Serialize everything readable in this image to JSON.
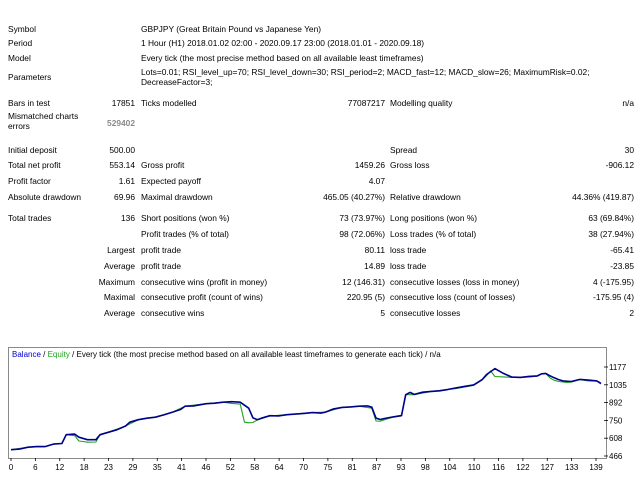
{
  "report": {
    "symbol_label": "Symbol",
    "symbol_value": "GBPJPY (Great Britain Pound vs Japanese Yen)",
    "period_label": "Period",
    "period_value": "1 Hour (H1) 2018.01.02 02:00 - 2020.09.17 23:00 (2018.01.01 - 2020.09.18)",
    "model_label": "Model",
    "model_value": "Every tick (the most precise method based on all available least timeframes)",
    "params_label": "Parameters",
    "params_value": "Lots=0.01; RSI_level_up=70; RSI_level_down=30; RSI_period=2; MACD_fast=12; MACD_slow=26; MaximumRisk=0.02; DecreaseFactor=3;",
    "bars_label": "Bars in test",
    "bars_value": "17851",
    "ticks_label": "Ticks modelled",
    "ticks_value": "77087217",
    "quality_label": "Modelling quality",
    "quality_value": "n/a",
    "mismatch_label": "Mismatched charts errors",
    "mismatch_value": "529402",
    "initial_deposit_label": "Initial deposit",
    "initial_deposit_value": "500.00",
    "spread_label": "Spread",
    "spread_value": "30",
    "net_profit_label": "Total net profit",
    "net_profit_value": "553.14",
    "gross_profit_label": "Gross profit",
    "gross_profit_value": "1459.26",
    "gross_loss_label": "Gross loss",
    "gross_loss_value": "-906.12",
    "profit_factor_label": "Profit factor",
    "profit_factor_value": "1.61",
    "expected_payoff_label": "Expected payoff",
    "expected_payoff_value": "4.07",
    "abs_dd_label": "Absolute drawdown",
    "abs_dd_value": "69.96",
    "max_dd_label": "Maximal drawdown",
    "max_dd_value": "465.05 (40.27%)",
    "rel_dd_label": "Relative drawdown",
    "rel_dd_value": "44.36% (419.87)",
    "total_trades_label": "Total trades",
    "total_trades_value": "136",
    "short_label": "Short positions (won %)",
    "short_value": "73 (73.97%)",
    "long_label": "Long positions (won %)",
    "long_value": "63 (69.84%)",
    "profit_trades_label": "Profit trades (% of total)",
    "profit_trades_value": "98 (72.06%)",
    "loss_trades_label": "Loss trades (% of total)",
    "loss_trades_value": "38 (27.94%)",
    "largest_label": "Largest",
    "largest_profit_label": "profit trade",
    "largest_profit_value": "80.11",
    "largest_loss_label": "loss trade",
    "largest_loss_value": "-65.41",
    "average_label": "Average",
    "average_profit_label": "profit trade",
    "average_profit_value": "14.89",
    "average_loss_label": "loss trade",
    "average_loss_value": "-23.85",
    "maximum_label": "Maximum",
    "max_cons_wins_label": "consecutive wins (profit in money)",
    "max_cons_wins_value": "12 (146.31)",
    "max_cons_losses_label": "consecutive losses (loss in money)",
    "max_cons_losses_value": "4 (-175.95)",
    "maximal_label": "Maximal",
    "maximal_cons_profit_label": "consecutive profit (count of wins)",
    "maximal_cons_profit_value": "220.95 (5)",
    "maximal_cons_loss_label": "consecutive loss (count of losses)",
    "maximal_cons_loss_value": "-175.95 (4)",
    "avg_label": "Average",
    "avg_cons_wins_label": "consecutive wins",
    "avg_cons_wins_value": "5",
    "avg_cons_losses_label": "consecutive losses",
    "avg_cons_losses_value": "2"
  },
  "chart_legend": {
    "balance": "Balance",
    "sep1": " / ",
    "equity": "Equity",
    "text": " / Every tick (the most precise method based on all available least timeframes to generate each tick) / n/a"
  },
  "colors": {
    "balance": "#00008b",
    "equity": "#1fa31f",
    "legend_balance": "#0000cd",
    "legend_equity": "#1fa31f"
  },
  "chart_data": {
    "type": "line",
    "title": "",
    "xlabel": "",
    "ylabel": "",
    "x_ticks": [
      "0",
      "6",
      "12",
      "18",
      "23",
      "29",
      "35",
      "41",
      "46",
      "52",
      "58",
      "64",
      "70",
      "75",
      "81",
      "87",
      "93",
      "98",
      "104",
      "110",
      "116",
      "122",
      "127",
      "133",
      "139"
    ],
    "y_ticks": [
      "1177",
      "1035",
      "892",
      "750",
      "608",
      "466"
    ],
    "xlim": [
      0,
      139
    ],
    "ylim": [
      466,
      1177
    ],
    "series": [
      {
        "name": "Balance",
        "points": [
          [
            0,
            500
          ],
          [
            2,
            505
          ],
          [
            4,
            520
          ],
          [
            6,
            525
          ],
          [
            8,
            525
          ],
          [
            10,
            545
          ],
          [
            12,
            550
          ],
          [
            13,
            620
          ],
          [
            15,
            625
          ],
          [
            16,
            600
          ],
          [
            18,
            580
          ],
          [
            20,
            580
          ],
          [
            21,
            620
          ],
          [
            23,
            640
          ],
          [
            25,
            660
          ],
          [
            27,
            690
          ],
          [
            28,
            720
          ],
          [
            30,
            740
          ],
          [
            32,
            752
          ],
          [
            34,
            760
          ],
          [
            36,
            778
          ],
          [
            38,
            800
          ],
          [
            40,
            822
          ],
          [
            41,
            848
          ],
          [
            43,
            850
          ],
          [
            45,
            862
          ],
          [
            46,
            868
          ],
          [
            48,
            872
          ],
          [
            50,
            880
          ],
          [
            52,
            884
          ],
          [
            54,
            880
          ],
          [
            56,
            832
          ],
          [
            57,
            755
          ],
          [
            58,
            740
          ],
          [
            59,
            752
          ],
          [
            61,
            772
          ],
          [
            63,
            770
          ],
          [
            65,
            780
          ],
          [
            67,
            785
          ],
          [
            69,
            790
          ],
          [
            71,
            797
          ],
          [
            73,
            793
          ],
          [
            74,
            800
          ],
          [
            76,
            826
          ],
          [
            78,
            838
          ],
          [
            80,
            842
          ],
          [
            82,
            848
          ],
          [
            84,
            850
          ],
          [
            85,
            840
          ],
          [
            86,
            752
          ],
          [
            87,
            742
          ],
          [
            88,
            750
          ],
          [
            90,
            762
          ],
          [
            92,
            773
          ],
          [
            93,
            940
          ],
          [
            94,
            958
          ],
          [
            95,
            942
          ],
          [
            97,
            960
          ],
          [
            99,
            966
          ],
          [
            101,
            971
          ],
          [
            103,
            982
          ],
          [
            105,
            995
          ],
          [
            107,
            1007
          ],
          [
            109,
            1018
          ],
          [
            111,
            1060
          ],
          [
            112,
            1100
          ],
          [
            114,
            1148
          ],
          [
            116,
            1110
          ],
          [
            118,
            1080
          ],
          [
            120,
            1078
          ],
          [
            122,
            1086
          ],
          [
            124,
            1090
          ],
          [
            125,
            1107
          ],
          [
            126,
            1110
          ],
          [
            127,
            1090
          ],
          [
            128,
            1075
          ],
          [
            129,
            1060
          ],
          [
            130,
            1050
          ],
          [
            132,
            1045
          ],
          [
            134,
            1062
          ],
          [
            136,
            1056
          ],
          [
            138,
            1050
          ],
          [
            139,
            1030
          ]
        ]
      },
      {
        "name": "Equity",
        "points": [
          [
            0,
            500
          ],
          [
            4,
            520
          ],
          [
            8,
            525
          ],
          [
            10,
            545
          ],
          [
            12,
            550
          ],
          [
            13,
            620
          ],
          [
            15,
            612
          ],
          [
            16,
            570
          ],
          [
            17,
            566
          ],
          [
            18,
            560
          ],
          [
            20,
            562
          ],
          [
            21,
            622
          ],
          [
            23,
            640
          ],
          [
            27,
            690
          ],
          [
            30,
            740
          ],
          [
            34,
            760
          ],
          [
            38,
            800
          ],
          [
            41,
            848
          ],
          [
            46,
            868
          ],
          [
            50,
            880
          ],
          [
            52,
            870
          ],
          [
            54,
            865
          ],
          [
            55,
            720
          ],
          [
            56,
            715
          ],
          [
            57,
            718
          ],
          [
            58,
            738
          ],
          [
            61,
            770
          ],
          [
            65,
            780
          ],
          [
            71,
            797
          ],
          [
            74,
            800
          ],
          [
            78,
            838
          ],
          [
            82,
            848
          ],
          [
            85,
            832
          ],
          [
            86,
            730
          ],
          [
            87,
            728
          ],
          [
            88,
            740
          ],
          [
            90,
            760
          ],
          [
            92,
            770
          ],
          [
            93,
            940
          ],
          [
            95,
            940
          ],
          [
            99,
            966
          ],
          [
            105,
            990
          ],
          [
            109,
            1015
          ],
          [
            111,
            1058
          ],
          [
            112,
            1090
          ],
          [
            113,
            1130
          ],
          [
            114,
            1085
          ],
          [
            116,
            1082
          ],
          [
            118,
            1078
          ],
          [
            122,
            1080
          ],
          [
            124,
            1088
          ],
          [
            125,
            1106
          ],
          [
            126,
            1108
          ],
          [
            127,
            1073
          ],
          [
            128,
            1055
          ],
          [
            129,
            1045
          ],
          [
            131,
            1038
          ],
          [
            132,
            1040
          ],
          [
            134,
            1060
          ],
          [
            136,
            1050
          ],
          [
            138,
            1048
          ],
          [
            139,
            1025
          ]
        ]
      }
    ]
  }
}
